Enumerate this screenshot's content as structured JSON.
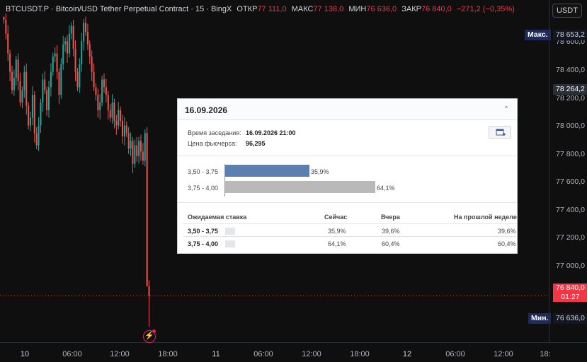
{
  "header": {
    "symbol": "BTCUSDT.P · Bitcoin/USD Tether Perpetual Contract · 15 · BingX",
    "open_label": "ОТКР",
    "open_value": "77 111,0",
    "high_label": "МАКС",
    "high_value": "77 138,0",
    "low_label": "МИН",
    "low_value": "76 636,0",
    "close_label": "ЗАКР",
    "close_value": "76 840,0",
    "change": "−271,2 (−0,35%)"
  },
  "currency_button": "USDT",
  "y_axis": {
    "ticks": [
      "78 600,0",
      "78 400,0",
      "78 200,0",
      "78 000,0",
      "77 800,0",
      "77 600,0",
      "77 400,0",
      "77 200,0",
      "77 000,0"
    ],
    "max_label": "Макс.",
    "max_value": "78 653,2",
    "crosshair_value": "78 264,2",
    "current_value": "76 840,0",
    "countdown": "01:27",
    "min_label": "Мин.",
    "min_value": "76 636,0"
  },
  "x_axis": {
    "ticks": [
      "10",
      "06:00",
      "12:00",
      "18:00",
      "11",
      "06:00",
      "12:00",
      "18:00",
      "12",
      "06:00",
      "12:00",
      "18:"
    ]
  },
  "colors": {
    "up": "#26a69a",
    "down": "#ef5350",
    "accent_blue": "#5b7fb0",
    "bar_gray": "#b9b9b9"
  },
  "chart_data": {
    "type": "candlestick",
    "ylim": [
      76600,
      78700
    ],
    "description_values": {
      "high": 78653.2,
      "low": 76636.0,
      "last": 76840.0
    },
    "closes": [
      78640,
      78550,
      78420,
      78300,
      78180,
      78260,
      78380,
      78240,
      78100,
      78180,
      78300,
      78080,
      77950,
      78000,
      78150,
      77900,
      77820,
      77950,
      78100,
      78250,
      78180,
      78050,
      78200,
      78300,
      78400,
      78420,
      78300,
      78150,
      78350,
      78480,
      78500,
      78420,
      78550,
      78600,
      78450,
      78300,
      78200,
      78350,
      78500,
      78620,
      78560,
      78480,
      78400,
      78300,
      78200,
      78150,
      78050,
      78100,
      78250,
      78200,
      78150,
      78050,
      78000,
      78100,
      77980,
      77950,
      78050,
      77980,
      77880,
      77950,
      77900,
      77800,
      77850,
      77700,
      77820,
      77750,
      77850,
      77780,
      77720,
      77900,
      76900,
      76840
    ]
  },
  "popup": {
    "date": "16.09.2026",
    "session_label": "Время заседания:",
    "session_value": "16.09.2026 21:00",
    "futures_label": "Цена фьючерса:",
    "futures_value": "96,295",
    "bars": [
      {
        "label": "3,50 - 3,75",
        "value": 35.9,
        "value_text": "35,9%"
      },
      {
        "label": "3,75 - 4,00",
        "value": 64.1,
        "value_text": "64,1%"
      }
    ],
    "table": {
      "headers": [
        "Ожидаемая ставка",
        "Сейчас",
        "Вчера",
        "На прошлой неделе"
      ],
      "rows": [
        [
          "3,50 - 3,75",
          "35,9%",
          "39,6%",
          "39,6%"
        ],
        [
          "3,75 - 4,00",
          "64,1%",
          "60,4%",
          "60,4%"
        ]
      ]
    }
  }
}
